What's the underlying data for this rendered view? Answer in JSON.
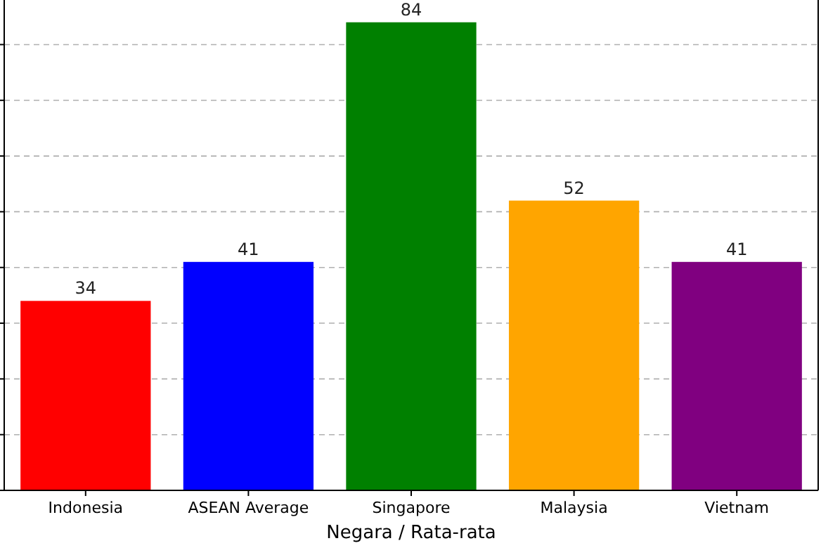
{
  "chart_data": {
    "type": "bar",
    "xlabel": "Negara / Rata-rata",
    "categories": [
      "Indonesia",
      "ASEAN Average",
      "Singapore",
      "Malaysia",
      "Vietnam"
    ],
    "values": [
      34,
      41,
      84,
      52,
      41
    ],
    "colors": [
      "#ff0000",
      "#0000ff",
      "#008000",
      "#ffa500",
      "#800080"
    ],
    "ylim": [
      0,
      88
    ],
    "yticks": [
      {
        "value": 0,
        "label": null
      },
      {
        "value": 10,
        "label": null
      },
      {
        "value": 20,
        "label": null
      },
      {
        "value": 30,
        "label": null
      },
      {
        "value": 40,
        "label": null
      },
      {
        "value": 50,
        "label": null
      },
      {
        "value": 60,
        "label": null
      },
      {
        "value": 70,
        "label": null
      },
      {
        "value": 80,
        "label": null
      }
    ],
    "grid": "y",
    "data_labels": true,
    "tick_labels": "x"
  }
}
